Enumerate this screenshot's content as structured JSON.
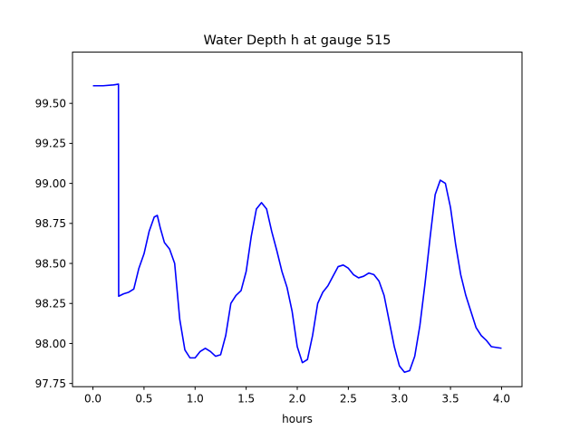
{
  "chart_data": {
    "type": "line",
    "title": "Water Depth h at gauge 515",
    "xlabel": "hours",
    "ylabel": "",
    "xlim": [
      -0.2,
      4.2
    ],
    "ylim": [
      97.73,
      99.82
    ],
    "xticks": [
      0.0,
      0.5,
      1.0,
      1.5,
      2.0,
      2.5,
      3.0,
      3.5,
      4.0
    ],
    "xtick_labels": [
      "0.0",
      "0.5",
      "1.0",
      "1.5",
      "2.0",
      "2.5",
      "3.0",
      "3.5",
      "4.0"
    ],
    "yticks": [
      97.75,
      98.0,
      98.25,
      98.5,
      98.75,
      99.0,
      99.25,
      99.5
    ],
    "ytick_labels": [
      "97.75",
      "98.00",
      "98.25",
      "98.50",
      "98.75",
      "99.00",
      "99.25",
      "99.50"
    ],
    "grid": false,
    "colors": {
      "line": "#0000ff",
      "axes": "#000000",
      "background": "#ffffff"
    },
    "series": [
      {
        "color": "#0000ff",
        "x": [
          0.0,
          0.1,
          0.2,
          0.25,
          0.252,
          0.3,
          0.35,
          0.4,
          0.45,
          0.5,
          0.55,
          0.6,
          0.63,
          0.66,
          0.7,
          0.75,
          0.8,
          0.85,
          0.9,
          0.95,
          1.0,
          1.05,
          1.1,
          1.15,
          1.2,
          1.25,
          1.3,
          1.35,
          1.4,
          1.45,
          1.5,
          1.55,
          1.6,
          1.65,
          1.7,
          1.75,
          1.8,
          1.85,
          1.9,
          1.95,
          2.0,
          2.05,
          2.1,
          2.15,
          2.2,
          2.25,
          2.3,
          2.35,
          2.4,
          2.45,
          2.5,
          2.55,
          2.6,
          2.65,
          2.7,
          2.75,
          2.8,
          2.85,
          2.9,
          2.95,
          3.0,
          3.05,
          3.1,
          3.15,
          3.2,
          3.25,
          3.3,
          3.35,
          3.4,
          3.45,
          3.5,
          3.55,
          3.6,
          3.65,
          3.7,
          3.75,
          3.8,
          3.85,
          3.9,
          3.95,
          4.0
        ],
        "y": [
          99.61,
          99.61,
          99.615,
          99.62,
          98.295,
          98.31,
          98.32,
          98.34,
          98.47,
          98.56,
          98.7,
          98.79,
          98.8,
          98.72,
          98.63,
          98.59,
          98.5,
          98.15,
          97.96,
          97.91,
          97.91,
          97.95,
          97.97,
          97.95,
          97.92,
          97.93,
          98.05,
          98.25,
          98.3,
          98.33,
          98.45,
          98.67,
          98.84,
          98.88,
          98.84,
          98.7,
          98.58,
          98.45,
          98.35,
          98.2,
          97.98,
          97.88,
          97.9,
          98.05,
          98.25,
          98.32,
          98.36,
          98.42,
          98.48,
          98.49,
          98.47,
          98.43,
          98.41,
          98.42,
          98.44,
          98.43,
          98.39,
          98.3,
          98.14,
          97.98,
          97.86,
          97.82,
          97.83,
          97.92,
          98.11,
          98.37,
          98.66,
          98.93,
          99.02,
          99.0,
          98.85,
          98.62,
          98.43,
          98.3,
          98.2,
          98.1,
          98.05,
          98.02,
          97.98,
          97.975,
          97.97
        ]
      }
    ]
  }
}
